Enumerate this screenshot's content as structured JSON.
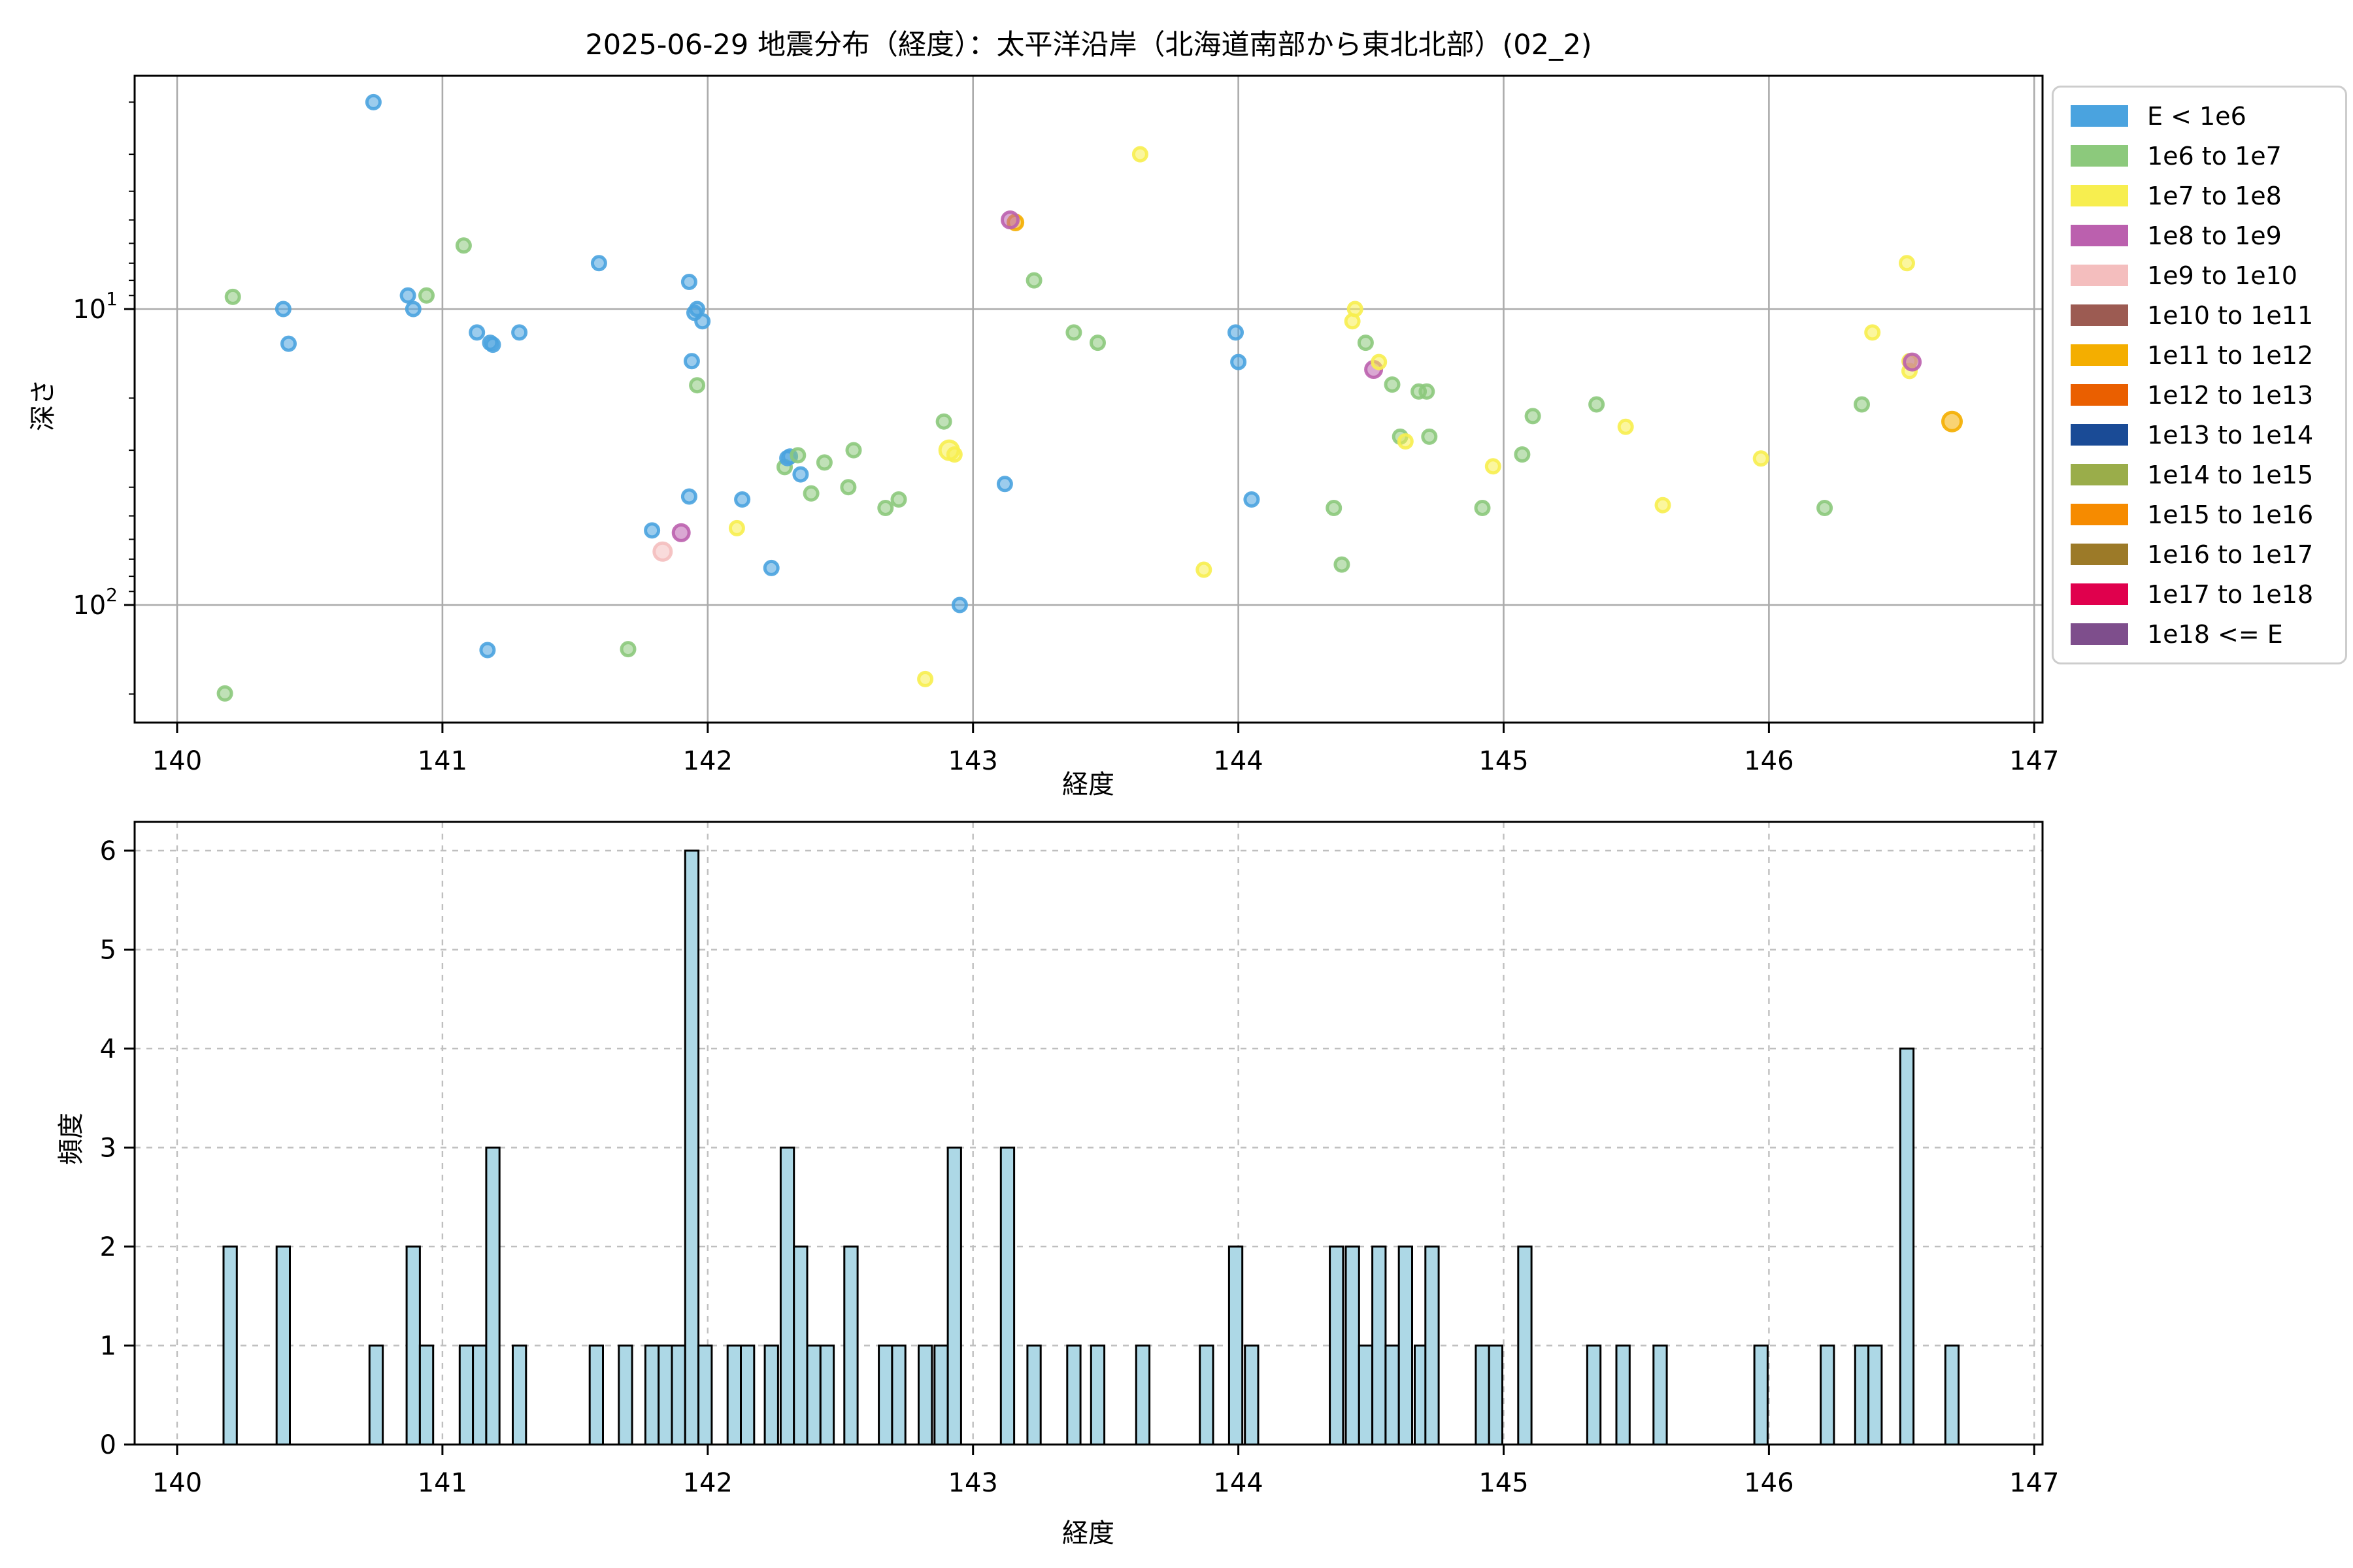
{
  "title": "2025-06-29 地震分布（経度）：太平洋沿岸（北海道南部から東北北部）(02_2)",
  "legend": {
    "entries": [
      {
        "label": "E < 1e6",
        "color": "#4AA3DF"
      },
      {
        "label": "1e6 to 1e7",
        "color": "#8CC97C"
      },
      {
        "label": "1e7 to 1e8",
        "color": "#F7EE4F"
      },
      {
        "label": "1e8 to 1e9",
        "color": "#BB60AE"
      },
      {
        "label": "1e9 to 1e10",
        "color": "#F4BEBE"
      },
      {
        "label": "1e10 to 1e11",
        "color": "#9C5B52"
      },
      {
        "label": "1e11 to 1e12",
        "color": "#F4AE00"
      },
      {
        "label": "1e12 to 1e13",
        "color": "#EA5F00"
      },
      {
        "label": "1e13 to 1e14",
        "color": "#1A4B96"
      },
      {
        "label": "1e14 to 1e15",
        "color": "#9AAD4A"
      },
      {
        "label": "1e15 to 1e16",
        "color": "#F68B00"
      },
      {
        "label": "1e16 to 1e17",
        "color": "#9C7A28"
      },
      {
        "label": "1e17 to 1e18",
        "color": "#E0004D"
      },
      {
        "label": "1e18 <= E",
        "color": "#7E4E8C"
      }
    ]
  },
  "chart_data": [
    {
      "type": "scatter",
      "title": "2025-06-29 地震分布（経度）：太平洋沿岸（北海道南部から東北北部）(02_2)",
      "xlabel": "経度",
      "ylabel": "深さ",
      "xlim": [
        139.84,
        147.03
      ],
      "xticks": [
        140,
        141,
        142,
        143,
        144,
        145,
        146,
        147
      ],
      "yscale": "log",
      "y_inverted": true,
      "ylim": [
        1.63,
        250
      ],
      "yticks": [
        {
          "v": 10,
          "base": "10",
          "sup": "1"
        },
        {
          "v": 100,
          "base": "10",
          "sup": "2"
        }
      ],
      "y_minor_ticks": [
        2,
        3,
        4,
        5,
        6,
        7,
        8,
        9,
        20,
        30,
        40,
        50,
        60,
        70,
        80,
        90,
        200
      ],
      "grid": "solid",
      "marker_default_radius": 10,
      "points": [
        [
          140.18,
          199,
          1
        ],
        [
          140.21,
          9.1,
          1
        ],
        [
          140.4,
          10.0,
          0
        ],
        [
          140.42,
          13.1,
          0
        ],
        [
          140.74,
          2.0,
          0
        ],
        [
          140.87,
          9.0,
          0
        ],
        [
          140.89,
          10.0,
          0
        ],
        [
          140.94,
          9.0,
          1
        ],
        [
          141.08,
          6.1,
          1
        ],
        [
          141.13,
          12.0,
          0
        ],
        [
          141.17,
          142,
          0
        ],
        [
          141.18,
          13.0,
          0
        ],
        [
          141.19,
          13.2,
          0
        ],
        [
          141.29,
          12.0,
          0
        ],
        [
          141.59,
          7.0,
          0
        ],
        [
          141.7,
          141,
          1
        ],
        [
          141.79,
          56,
          0
        ],
        [
          141.83,
          66,
          4,
          13
        ],
        [
          141.9,
          57,
          3,
          12
        ],
        [
          141.93,
          8.1,
          0
        ],
        [
          141.93,
          43,
          0
        ],
        [
          141.94,
          15.0,
          0
        ],
        [
          141.95,
          10.3,
          0
        ],
        [
          141.96,
          10.0,
          0
        ],
        [
          141.96,
          18.1,
          1
        ],
        [
          141.98,
          11.0,
          0
        ],
        [
          142.11,
          55,
          2
        ],
        [
          142.13,
          44,
          0
        ],
        [
          142.24,
          75,
          0
        ],
        [
          142.29,
          34.2,
          1
        ],
        [
          142.3,
          31.9,
          0
        ],
        [
          142.31,
          31.5,
          0
        ],
        [
          142.34,
          31.2,
          1
        ],
        [
          142.35,
          36.2,
          0
        ],
        [
          142.39,
          42,
          1
        ],
        [
          142.44,
          33,
          1
        ],
        [
          142.53,
          40,
          1
        ],
        [
          142.55,
          30,
          1
        ],
        [
          142.67,
          47,
          1
        ],
        [
          142.72,
          44,
          1
        ],
        [
          142.82,
          178,
          2
        ],
        [
          142.89,
          24,
          1
        ],
        [
          142.91,
          30,
          2,
          14
        ],
        [
          142.93,
          31,
          2
        ],
        [
          142.95,
          100,
          0
        ],
        [
          143.12,
          39,
          0
        ],
        [
          143.16,
          5.1,
          6,
          11
        ],
        [
          143.14,
          5.0,
          3,
          12
        ],
        [
          143.23,
          8.0,
          1
        ],
        [
          143.38,
          12.0,
          1
        ],
        [
          143.47,
          13,
          1
        ],
        [
          143.63,
          3.0,
          2
        ],
        [
          143.87,
          76,
          2
        ],
        [
          143.99,
          12.0,
          0
        ],
        [
          144.0,
          15.1,
          0
        ],
        [
          144.05,
          44,
          0
        ],
        [
          144.36,
          47,
          1
        ],
        [
          144.39,
          73,
          1
        ],
        [
          144.43,
          11.0,
          2
        ],
        [
          144.44,
          10.0,
          2
        ],
        [
          144.48,
          13.0,
          1
        ],
        [
          144.51,
          16.0,
          3,
          12
        ],
        [
          144.53,
          15.1,
          2
        ],
        [
          144.58,
          18.0,
          1
        ],
        [
          144.61,
          27,
          1
        ],
        [
          144.63,
          28,
          2
        ],
        [
          144.68,
          19,
          1
        ],
        [
          144.71,
          19,
          1
        ],
        [
          144.72,
          27,
          1
        ],
        [
          144.92,
          47,
          1
        ],
        [
          144.96,
          34,
          2
        ],
        [
          145.07,
          31,
          1
        ],
        [
          145.11,
          23,
          1
        ],
        [
          145.35,
          21,
          1
        ],
        [
          145.46,
          25,
          2
        ],
        [
          145.6,
          46,
          2
        ],
        [
          145.97,
          32,
          2
        ],
        [
          146.21,
          47,
          1
        ],
        [
          146.35,
          21,
          1
        ],
        [
          146.39,
          12.0,
          2
        ],
        [
          146.52,
          7.0,
          2
        ],
        [
          146.53,
          15.0,
          2
        ],
        [
          146.53,
          16.2,
          2
        ],
        [
          146.54,
          15.1,
          3,
          12
        ],
        [
          146.69,
          24,
          6,
          14
        ]
      ]
    },
    {
      "type": "bar",
      "xlabel": "経度",
      "ylabel": "頻度",
      "xlim": [
        139.84,
        147.03
      ],
      "xticks": [
        140,
        141,
        142,
        143,
        144,
        145,
        146,
        147
      ],
      "ylim": [
        0,
        6.29
      ],
      "yticks": [
        0,
        1,
        2,
        3,
        4,
        5,
        6
      ],
      "bin_width": 0.05,
      "bar_color": "#ADD8E6",
      "bar_edge_color": "#000000",
      "grid": "dashed",
      "bars": [
        [
          140.2,
          2
        ],
        [
          140.4,
          2
        ],
        [
          140.75,
          1
        ],
        [
          140.89,
          2
        ],
        [
          140.94,
          1
        ],
        [
          141.09,
          1
        ],
        [
          141.14,
          1
        ],
        [
          141.19,
          3
        ],
        [
          141.29,
          1
        ],
        [
          141.58,
          1
        ],
        [
          141.69,
          1
        ],
        [
          141.79,
          1
        ],
        [
          141.84,
          1
        ],
        [
          141.89,
          1
        ],
        [
          141.94,
          6
        ],
        [
          141.99,
          1
        ],
        [
          142.1,
          1
        ],
        [
          142.15,
          1
        ],
        [
          142.24,
          1
        ],
        [
          142.3,
          3
        ],
        [
          142.35,
          2
        ],
        [
          142.4,
          1
        ],
        [
          142.45,
          1
        ],
        [
          142.54,
          2
        ],
        [
          142.67,
          1
        ],
        [
          142.72,
          1
        ],
        [
          142.82,
          1
        ],
        [
          142.88,
          1
        ],
        [
          142.93,
          3
        ],
        [
          143.13,
          3
        ],
        [
          143.23,
          1
        ],
        [
          143.38,
          1
        ],
        [
          143.47,
          1
        ],
        [
          143.64,
          1
        ],
        [
          143.88,
          1
        ],
        [
          143.99,
          2
        ],
        [
          144.05,
          1
        ],
        [
          144.37,
          2
        ],
        [
          144.43,
          2
        ],
        [
          144.48,
          1
        ],
        [
          144.53,
          2
        ],
        [
          144.58,
          1
        ],
        [
          144.63,
          2
        ],
        [
          144.69,
          1
        ],
        [
          144.73,
          2
        ],
        [
          144.92,
          1
        ],
        [
          144.97,
          1
        ],
        [
          145.08,
          2
        ],
        [
          145.34,
          1
        ],
        [
          145.45,
          1
        ],
        [
          145.59,
          1
        ],
        [
          145.97,
          1
        ],
        [
          146.22,
          1
        ],
        [
          146.35,
          1
        ],
        [
          146.4,
          1
        ],
        [
          146.52,
          4
        ],
        [
          146.69,
          1
        ]
      ]
    }
  ]
}
